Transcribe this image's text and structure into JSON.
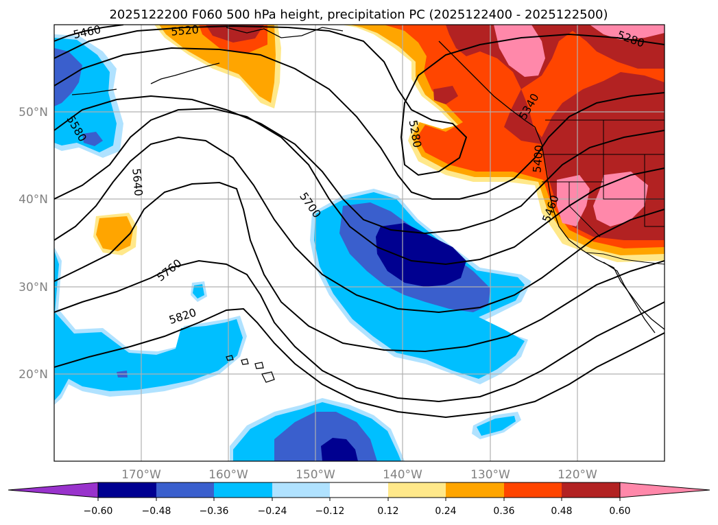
{
  "title": "2025122200 F060 500 hPa height, precipitation PC (2025122400 - 2025122500)",
  "map": {
    "projection": "plate-carree",
    "lon_range": [
      -180,
      -110
    ],
    "lat_range": [
      10,
      60
    ],
    "gridlines": true,
    "lon_tick_labels": [
      "170°W",
      "160°W",
      "150°W",
      "140°W",
      "130°W",
      "120°W"
    ],
    "lat_tick_labels": [
      "50°N",
      "40°N",
      "30°N",
      "20°N"
    ]
  },
  "contour_labels": [
    "5460",
    "5520",
    "5580",
    "5640",
    "5700",
    "5760",
    "5820",
    "5280",
    "5280",
    "5340",
    "5400",
    "5460"
  ],
  "colorbar": {
    "extend": "both",
    "tick_labels": [
      "−0.60",
      "−0.48",
      "−0.36",
      "−0.24",
      "−0.12",
      "0.12",
      "0.24",
      "0.36",
      "0.48",
      "0.60"
    ],
    "colors": {
      "below": "#9933cc",
      "n060_n048": "#000090",
      "n048_n036": "#3a5fcd",
      "n036_n024": "#00bfff",
      "n024_n012": "#b0e2ff",
      "n012_p012": "#ffffff",
      "p012_p024": "#ffe88a",
      "p024_p036": "#ffa500",
      "p036_p048": "#ff4500",
      "p048_p060": "#b22222",
      "above": "#ff88aa"
    }
  }
}
